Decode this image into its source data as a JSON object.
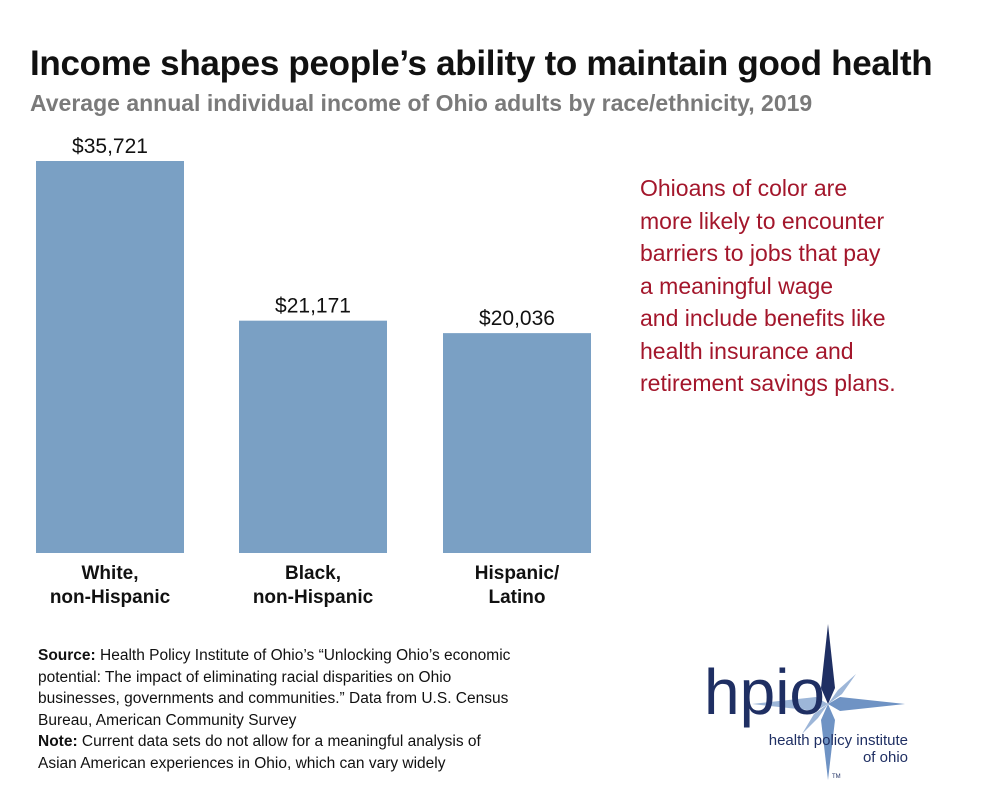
{
  "header": {
    "title": "Income shapes people’s ability to maintain good health",
    "subtitle": "Average annual individual income of Ohio adults by race/ethnicity, 2019"
  },
  "chart_data": {
    "type": "bar",
    "title": "Income shapes people’s ability to maintain good health",
    "subtitle": "Average annual individual income of Ohio adults by race/ethnicity, 2019",
    "categories": [
      "White,\nnon-Hispanic",
      "Black,\nnon-Hispanic",
      "Hispanic/\nLatino"
    ],
    "values": [
      35721,
      21171,
      20036
    ],
    "data_labels": [
      "$35,721",
      "$21,171",
      "$20,036"
    ],
    "xlabel": "",
    "ylabel": "",
    "ylim": [
      0,
      35721
    ],
    "grid": false,
    "bar_color": "#7aa0c4"
  },
  "callout": {
    "lines": [
      "Ohioans of color are",
      "more likely to encounter",
      "barriers to jobs that pay",
      "a meaningful wage",
      "and include benefits like",
      "health insurance and",
      "retirement savings plans."
    ]
  },
  "footnote": {
    "source_label": "Source:",
    "source_lines": [
      " Health Policy Institute of Ohio’s “Unlocking Ohio’s economic",
      "potential: The impact of eliminating racial disparities on Ohio",
      "businesses, governments and communities.” Data from U.S. Census",
      "Bureau, American Community Survey"
    ],
    "note_label": "Note:",
    "note_lines": [
      " Current data sets do not allow for a meaningful analysis of",
      "Asian American experiences in Ohio, which can vary widely"
    ]
  },
  "logo": {
    "wordmark": "hpio",
    "tagline_line1": "health policy institute",
    "tagline_line2": "of ohio",
    "trademark": "TM",
    "colors": {
      "navy": "#1f2f63",
      "star": "#6f93c4"
    }
  }
}
